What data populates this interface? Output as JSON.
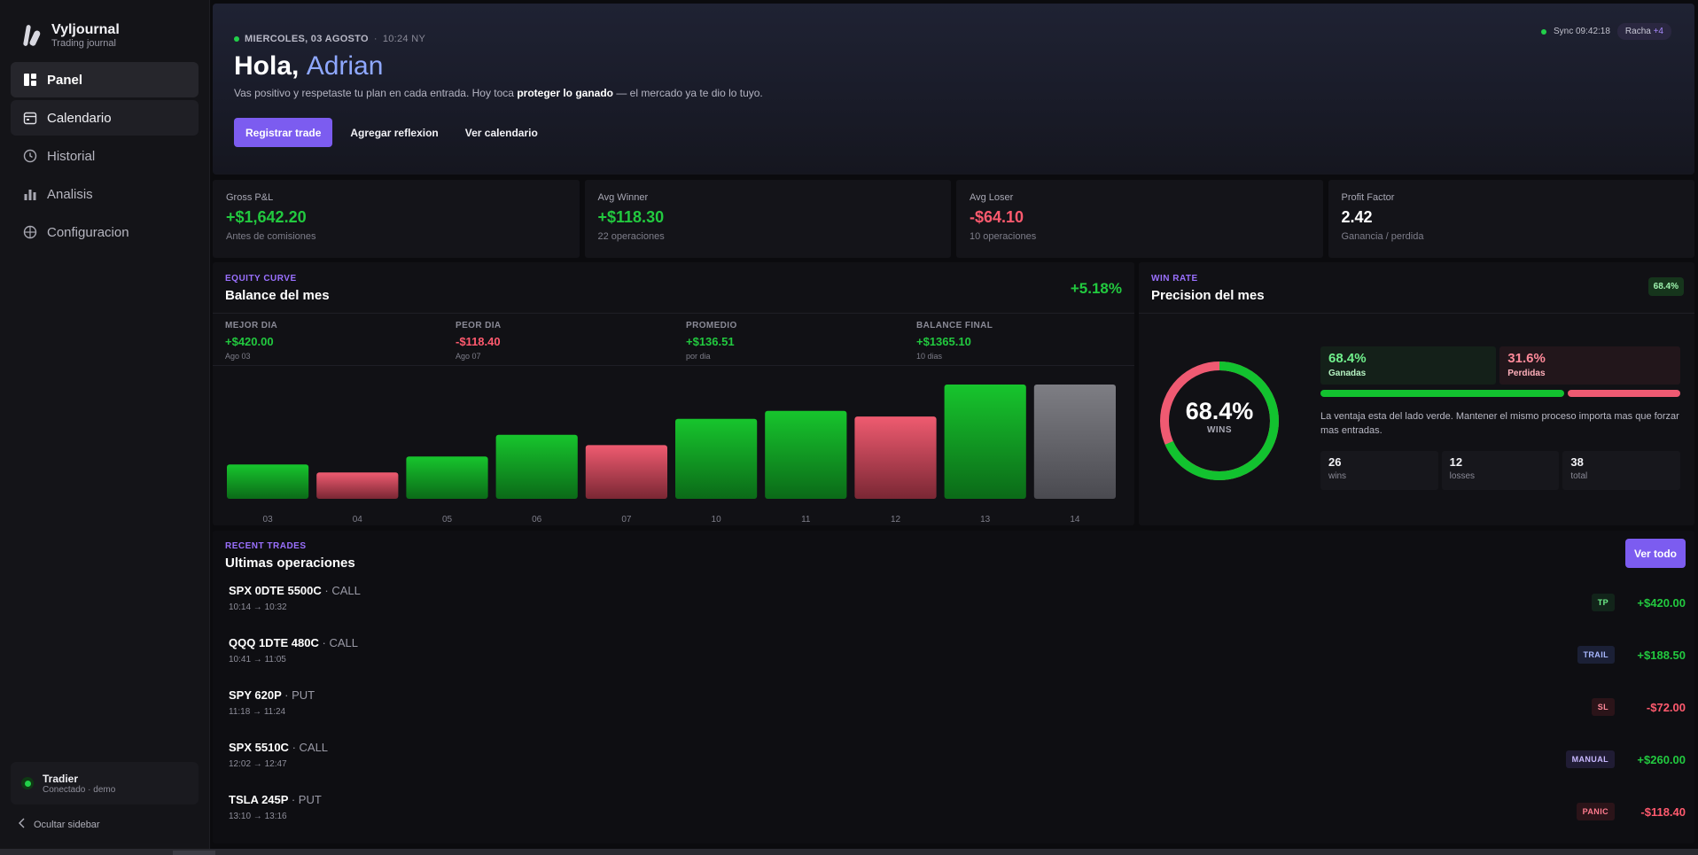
{
  "brand": {
    "name": "Vyljournal",
    "subtitle": "Trading journal"
  },
  "nav": {
    "items": [
      {
        "label": "Panel",
        "icon": "dashboard-icon",
        "state": "active"
      },
      {
        "label": "Calendario",
        "icon": "calendar-icon",
        "state": "hover"
      },
      {
        "label": "Historial",
        "icon": "clock-icon",
        "state": "normal"
      },
      {
        "label": "Analisis",
        "icon": "bar-chart-icon",
        "state": "normal"
      },
      {
        "label": "Configuracion",
        "icon": "globe-icon",
        "state": "normal"
      }
    ]
  },
  "account": {
    "name": "Tradier",
    "status": "Conectado · demo"
  },
  "sidebar_toggle": {
    "label": "Ocultar sidebar"
  },
  "hero": {
    "date": "MIERCOLES, 03 AGOSTO",
    "sep": "·",
    "time": "10:24 NY",
    "greeting": "Hola,",
    "user": "Adrian",
    "message_pre": "Vas positivo y respetaste tu plan en cada entrada. Hoy toca",
    "message_bold": "proteger lo ganado",
    "message_post": "— el mercado ya te dio lo tuyo.",
    "actions": {
      "primary": "Registrar trade",
      "secondary": "Agregar reflexion",
      "tertiary": "Ver calendario"
    },
    "sync": "Sync 09:42:18",
    "streak_label": "Racha",
    "streak_value": "+4"
  },
  "kpis": [
    {
      "label": "Gross P&L",
      "value": "+$1,642.20",
      "sub": "Antes de comisiones",
      "tone": "pos"
    },
    {
      "label": "Avg Winner",
      "value": "+$118.30",
      "sub": "22 operaciones",
      "tone": "pos"
    },
    {
      "label": "Avg Loser",
      "value": "-$64.10",
      "sub": "10 operaciones",
      "tone": "neg"
    },
    {
      "label": "Profit Factor",
      "value": "2.42",
      "sub": "Ganancia / perdida",
      "tone": "neu"
    }
  ],
  "equity": {
    "eyebrow": "EQUITY CURVE",
    "title": "Balance del mes",
    "change": "+5.18%",
    "stats": [
      {
        "label": "MEJOR DIA",
        "value": "+$420.00",
        "sub": "Ago 03",
        "tone": "pos"
      },
      {
        "label": "PEOR DIA",
        "value": "-$118.40",
        "sub": "Ago 07",
        "tone": "neg"
      },
      {
        "label": "PROMEDIO",
        "value": "+$136.51",
        "sub": "por dia",
        "tone": "pos"
      },
      {
        "label": "BALANCE FINAL",
        "value": "+$1365.10",
        "sub": "10 dias",
        "tone": "pos"
      }
    ]
  },
  "chart_data": {
    "type": "bar",
    "categories": [
      "03",
      "04",
      "05",
      "06",
      "07",
      "10",
      "11",
      "12",
      "13",
      "14"
    ],
    "values": [
      30,
      23,
      37,
      56,
      47,
      70,
      77,
      72,
      100,
      100
    ],
    "bar_tones": [
      "pos",
      "neg",
      "pos",
      "pos",
      "neg",
      "pos",
      "pos",
      "neg",
      "pos",
      "neutral"
    ],
    "ylim": [
      0,
      100
    ],
    "colors": {
      "pos": "#16c12c",
      "neg": "#e8576b",
      "neutral": "#7a7a80"
    },
    "title": "",
    "xlabel": "",
    "ylabel": ""
  },
  "winrate": {
    "eyebrow": "WIN RATE",
    "title": "Precision del mes",
    "badge": "68.4%",
    "pct_value": 68.4,
    "pct_label": "68.4%",
    "center_label": "WINS",
    "wins_pct": "68.4%",
    "wins_label": "Ganadas",
    "losses_pct": "31.6%",
    "losses_label": "Perdidas",
    "note": "La ventaja esta del lado verde. Mantener el mismo proceso importa mas que forzar mas entradas.",
    "counts": [
      {
        "value": "26",
        "label": "wins"
      },
      {
        "value": "12",
        "label": "losses"
      },
      {
        "value": "38",
        "label": "total"
      }
    ],
    "colors": {
      "win": "#12c22f",
      "loss": "#ef5a72"
    }
  },
  "trades": {
    "eyebrow": "RECENT TRADES",
    "title": "Ultimas operaciones",
    "view_all": "Ver todo",
    "rows": [
      {
        "symbol": "SPX 0DTE 5500C",
        "side": "· CALL",
        "time": "10:14 → 10:32",
        "tag": "TP",
        "tag_class": "tp",
        "pnl": "+$420.00",
        "tone": "pos"
      },
      {
        "symbol": "QQQ 1DTE 480C",
        "side": "· CALL",
        "time": "10:41 → 11:05",
        "tag": "TRAIL",
        "tag_class": "trail",
        "pnl": "+$188.50",
        "tone": "pos"
      },
      {
        "symbol": "SPY 620P",
        "side": "· PUT",
        "time": "11:18 → 11:24",
        "tag": "SL",
        "tag_class": "sl",
        "pnl": "-$72.00",
        "tone": "neg"
      },
      {
        "symbol": "SPX 5510C",
        "side": "· CALL",
        "time": "12:02 → 12:47",
        "tag": "MANUAL",
        "tag_class": "manual",
        "pnl": "+$260.00",
        "tone": "pos"
      },
      {
        "symbol": "TSLA 245P",
        "side": "· PUT",
        "time": "13:10 → 13:16",
        "tag": "PANIC",
        "tag_class": "panic",
        "pnl": "-$118.40",
        "tone": "neg"
      }
    ]
  }
}
